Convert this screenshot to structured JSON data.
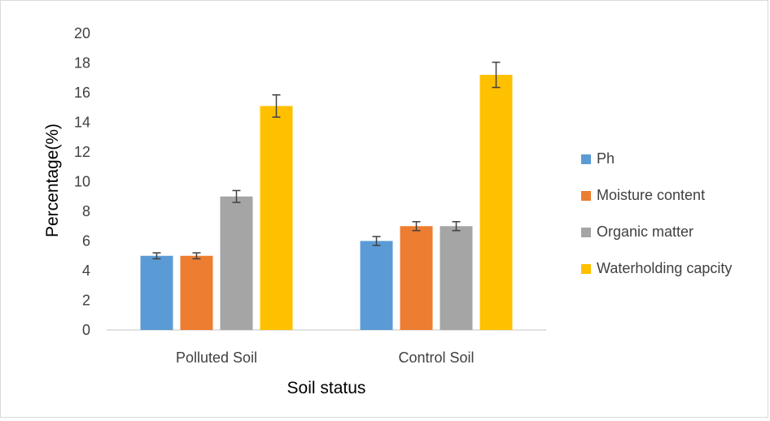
{
  "chart_data": {
    "type": "bar",
    "title": "",
    "xlabel": "Soil status",
    "ylabel": "Percentage(%)",
    "ylim": [
      0,
      20
    ],
    "yticks": [
      0,
      2,
      4,
      6,
      8,
      10,
      12,
      14,
      16,
      18,
      20
    ],
    "categories": [
      "Polluted Soil",
      "Control Soil"
    ],
    "series": [
      {
        "name": "Ph",
        "color": "#5b9bd5",
        "values": [
          5,
          6
        ],
        "errors": [
          0.2,
          0.3
        ]
      },
      {
        "name": "Moisture content",
        "color": "#ed7d31",
        "values": [
          5,
          7
        ],
        "errors": [
          0.2,
          0.3
        ]
      },
      {
        "name": "Organic matter",
        "color": "#a5a5a5",
        "values": [
          9,
          7
        ],
        "errors": [
          0.4,
          0.3
        ]
      },
      {
        "name": "Waterholding capcity",
        "color": "#ffc000",
        "values": [
          15.1,
          17.2
        ],
        "errors": [
          0.75,
          0.85
        ]
      }
    ],
    "grid": false,
    "legend_position": "right"
  }
}
